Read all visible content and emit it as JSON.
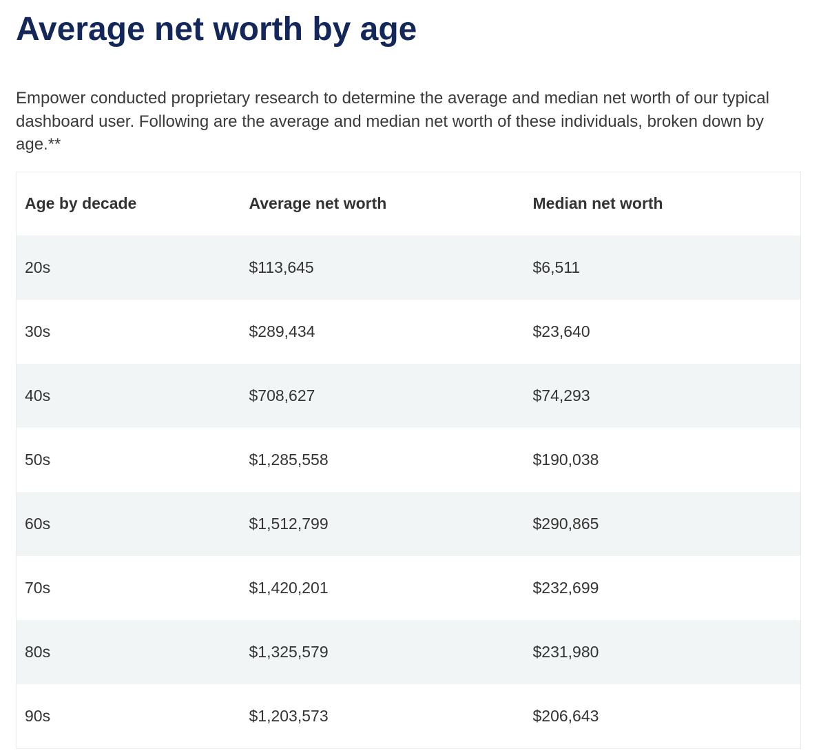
{
  "header": {
    "title": "Average net worth by age"
  },
  "intro": "Empower conducted proprietary research to determine the average and median net worth of our typical dashboard user. Following are the average and median net worth of these individuals, broken down by age.**",
  "table": {
    "columns": [
      "Age by decade",
      "Average net worth",
      "Median net worth"
    ],
    "rows": [
      [
        "20s",
        "$113,645",
        "$6,511"
      ],
      [
        "30s",
        "$289,434",
        "$23,640"
      ],
      [
        "40s",
        "$708,627",
        "$74,293"
      ],
      [
        "50s",
        "$1,285,558",
        "$190,038"
      ],
      [
        "60s",
        "$1,512,799",
        "$290,865"
      ],
      [
        "70s",
        "$1,420,201",
        "$232,699"
      ],
      [
        "80s",
        "$1,325,579",
        "$231,980"
      ],
      [
        "90s",
        "$1,203,573",
        "$206,643"
      ]
    ]
  }
}
